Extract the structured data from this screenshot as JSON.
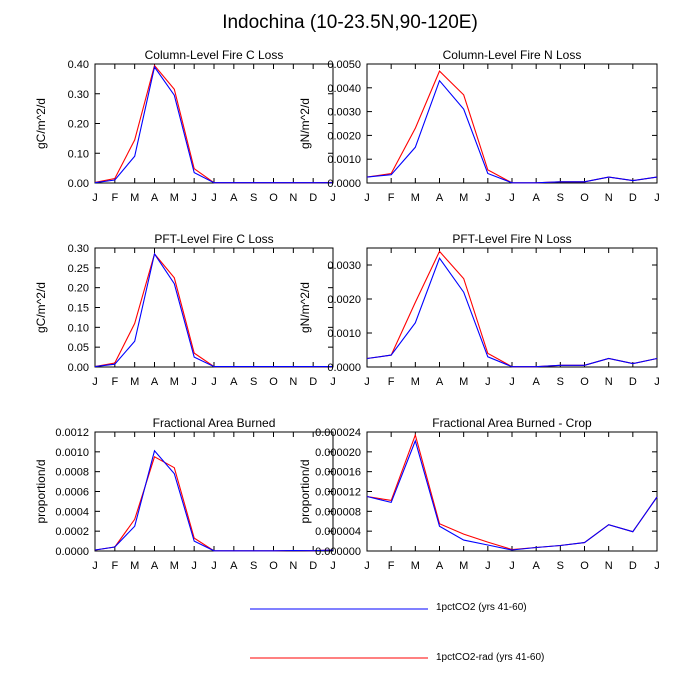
{
  "title": "Indochina (10-23.5N,90-120E)",
  "months": [
    "J",
    "F",
    "M",
    "A",
    "M",
    "J",
    "J",
    "A",
    "S",
    "O",
    "N",
    "D",
    "J"
  ],
  "series_meta": [
    {
      "name": "1pctCO2 (yrs 41-60)",
      "color": "#0000ff"
    },
    {
      "name": "1pctCO2-rad (yrs 41-60)",
      "color": "#ff0000"
    }
  ],
  "chart_data": [
    {
      "type": "line",
      "title": "Column-Level Fire C Loss",
      "ylabel": "gC/m^2/d",
      "ylim": [
        0,
        0.4
      ],
      "yticks": [
        "0.00",
        "0.10",
        "0.20",
        "0.30",
        "0.40"
      ],
      "x": [
        "J",
        "F",
        "M",
        "A",
        "M",
        "J",
        "J",
        "A",
        "S",
        "O",
        "N",
        "D",
        "J"
      ],
      "series": [
        {
          "name": "1pctCO2 (yrs 41-60)",
          "color": "#0000ff",
          "values": [
            0.001,
            0.01,
            0.09,
            0.39,
            0.295,
            0.035,
            0.001,
            0.001,
            0.001,
            0.001,
            0.001,
            0.001,
            0.001
          ]
        },
        {
          "name": "1pctCO2-rad (yrs 41-60)",
          "color": "#ff0000",
          "values": [
            0.002,
            0.015,
            0.145,
            0.395,
            0.315,
            0.048,
            0.001,
            0.001,
            0.001,
            0.001,
            0.001,
            0.001,
            0.002
          ]
        }
      ]
    },
    {
      "type": "line",
      "title": "Column-Level Fire N Loss",
      "ylabel": "gN/m^2/d",
      "ylim": [
        0,
        0.005
      ],
      "yticks": [
        "0.0000",
        "0.0010",
        "0.0020",
        "0.0030",
        "0.0040",
        "0.0050"
      ],
      "x": [
        "J",
        "F",
        "M",
        "A",
        "M",
        "J",
        "J",
        "A",
        "S",
        "O",
        "N",
        "D",
        "J"
      ],
      "series": [
        {
          "name": "1pctCO2 (yrs 41-60)",
          "color": "#0000ff",
          "values": [
            0.00025,
            0.00035,
            0.0015,
            0.0043,
            0.0031,
            0.0004,
            1e-05,
            1e-05,
            5e-05,
            5e-05,
            0.00025,
            0.0001,
            0.00025
          ]
        },
        {
          "name": "1pctCO2-rad (yrs 41-60)",
          "color": "#ff0000",
          "values": [
            0.00025,
            0.0004,
            0.0023,
            0.0047,
            0.0037,
            0.00055,
            1e-05,
            1e-05,
            5e-05,
            5e-05,
            0.00025,
            0.0001,
            0.00025
          ]
        }
      ]
    },
    {
      "type": "line",
      "title": "PFT-Level Fire C Loss",
      "ylabel": "gC/m^2/d",
      "ylim": [
        0,
        0.3
      ],
      "yticks": [
        "0.00",
        "0.05",
        "0.10",
        "0.15",
        "0.20",
        "0.25",
        "0.30"
      ],
      "x": [
        "J",
        "F",
        "M",
        "A",
        "M",
        "J",
        "J",
        "A",
        "S",
        "O",
        "N",
        "D",
        "J"
      ],
      "series": [
        {
          "name": "1pctCO2 (yrs 41-60)",
          "color": "#0000ff",
          "values": [
            0.001,
            0.007,
            0.065,
            0.285,
            0.21,
            0.025,
            0.001,
            0.001,
            0.001,
            0.001,
            0.001,
            0.001,
            0.001
          ]
        },
        {
          "name": "1pctCO2-rad (yrs 41-60)",
          "color": "#ff0000",
          "values": [
            0.001,
            0.01,
            0.11,
            0.285,
            0.225,
            0.035,
            0.001,
            0.001,
            0.001,
            0.001,
            0.001,
            0.001,
            0.001
          ]
        }
      ]
    },
    {
      "type": "line",
      "title": "PFT-Level Fire N Loss",
      "ylabel": "gN/m^2/d",
      "ylim": [
        0,
        0.0035
      ],
      "yticks": [
        "0.0000",
        "0.0010",
        "0.0020",
        "0.0030"
      ],
      "ytick_values": [
        0,
        0.001,
        0.002,
        0.003
      ],
      "x": [
        "J",
        "F",
        "M",
        "A",
        "M",
        "J",
        "J",
        "A",
        "S",
        "O",
        "N",
        "D",
        "J"
      ],
      "series": [
        {
          "name": "1pctCO2 (yrs 41-60)",
          "color": "#0000ff",
          "values": [
            0.00025,
            0.00035,
            0.0013,
            0.0032,
            0.0022,
            0.0003,
            1e-05,
            1e-05,
            5e-05,
            5e-05,
            0.00025,
            0.0001,
            0.00025
          ]
        },
        {
          "name": "1pctCO2-rad (yrs 41-60)",
          "color": "#ff0000",
          "values": [
            0.00025,
            0.00035,
            0.0019,
            0.0034,
            0.0026,
            0.0004,
            1e-05,
            1e-05,
            5e-05,
            5e-05,
            0.00025,
            0.0001,
            0.00025
          ]
        }
      ]
    },
    {
      "type": "line",
      "title": "Fractional Area Burned",
      "ylabel": "proportion/d",
      "ylim": [
        0,
        0.0012
      ],
      "yticks": [
        "0.0000",
        "0.0002",
        "0.0004",
        "0.0006",
        "0.0008",
        "0.0010",
        "0.0012"
      ],
      "x": [
        "J",
        "F",
        "M",
        "A",
        "M",
        "J",
        "J",
        "A",
        "S",
        "O",
        "N",
        "D",
        "J"
      ],
      "series": [
        {
          "name": "1pctCO2 (yrs 41-60)",
          "color": "#0000ff",
          "values": [
            1e-05,
            4e-05,
            0.00025,
            0.00101,
            0.00078,
            0.0001,
            2e-06,
            2e-06,
            2e-06,
            2e-06,
            5e-06,
            3e-06,
            1e-05
          ]
        },
        {
          "name": "1pctCO2-rad (yrs 41-60)",
          "color": "#ff0000",
          "values": [
            1e-05,
            4e-05,
            0.00032,
            0.00095,
            0.00084,
            0.00013,
            2e-06,
            2e-06,
            2e-06,
            2e-06,
            5e-06,
            3e-06,
            1e-05
          ]
        }
      ]
    },
    {
      "type": "line",
      "title": "Fractional Area Burned - Crop",
      "ylabel": "proportion/d",
      "ylim": [
        0,
        2.4e-05
      ],
      "yticks": [
        "0.000000",
        "0.000004",
        "0.000008",
        "0.000012",
        "0.000016",
        "0.000020",
        "0.000024"
      ],
      "x": [
        "J",
        "F",
        "M",
        "A",
        "M",
        "J",
        "J",
        "A",
        "S",
        "O",
        "N",
        "D",
        "J"
      ],
      "series": [
        {
          "name": "1pctCO2 (yrs 41-60)",
          "color": "#0000ff",
          "values": [
            1.1e-05,
            9.8e-06,
            2.22e-05,
            5e-06,
            2.2e-06,
            1.2e-06,
            2e-07,
            7e-07,
            1.1e-06,
            1.7e-06,
            5.3e-06,
            3.9e-06,
            1.09e-05
          ]
        },
        {
          "name": "1pctCO2-rad (yrs 41-60)",
          "color": "#ff0000",
          "values": [
            1.1e-05,
            1.02e-05,
            2.34e-05,
            5.5e-06,
            3.4e-06,
            1.8e-06,
            3e-07,
            7e-07,
            1.1e-06,
            1.7e-06,
            5.3e-06,
            3.9e-06,
            1.09e-05
          ]
        }
      ]
    }
  ]
}
